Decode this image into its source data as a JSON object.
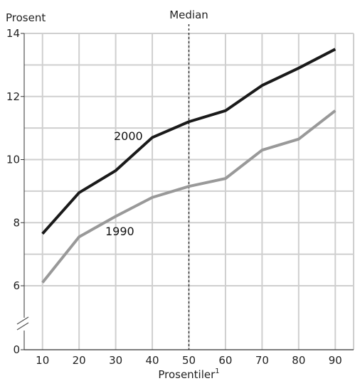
{
  "chart_data": {
    "type": "line",
    "ylabel": "Prosent",
    "xlabel": "Prosentiler",
    "xlabel_superscript": "1",
    "median_label": "Median",
    "median_x": 50,
    "x": [
      10,
      20,
      30,
      40,
      50,
      60,
      70,
      80,
      90
    ],
    "x_tick_labels": [
      "10",
      "20",
      "30",
      "40",
      "50",
      "60",
      "70",
      "80",
      "90"
    ],
    "y_tick_labels": [
      "14",
      "12",
      "10",
      "8",
      "6",
      "0"
    ],
    "y_break": "6 to 0 (axis break)",
    "xlim": [
      5,
      95
    ],
    "ylim": [
      5,
      14
    ],
    "grid": true,
    "series": [
      {
        "name": "2000",
        "color": "#1a1a1a",
        "values": [
          7.65,
          8.95,
          9.65,
          10.7,
          11.2,
          11.55,
          12.35,
          12.9,
          13.5
        ]
      },
      {
        "name": "1990",
        "color": "#999999",
        "values": [
          6.1,
          7.55,
          8.2,
          8.8,
          9.15,
          9.4,
          10.3,
          10.65,
          11.55
        ]
      }
    ]
  }
}
